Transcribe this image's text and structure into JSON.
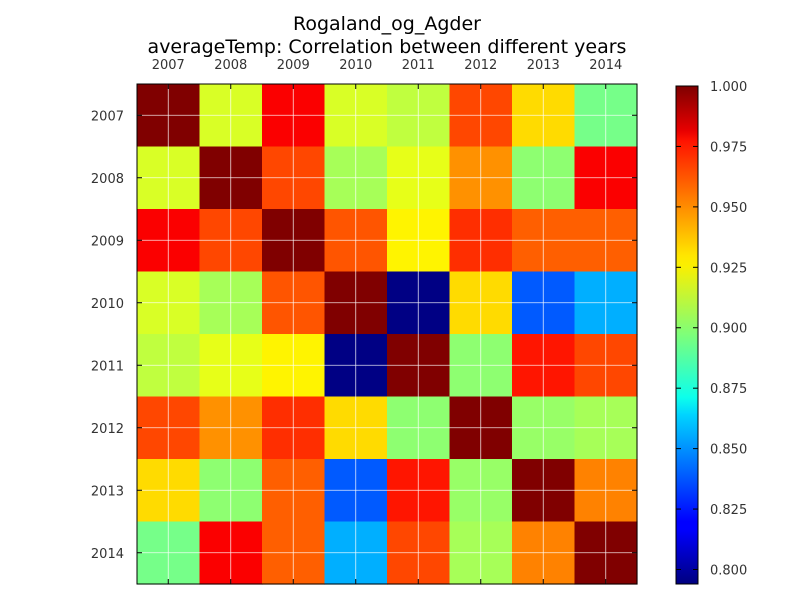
{
  "chart_data": {
    "type": "heatmap",
    "title_line1": "Rogaland_og_Agder",
    "title_line2": "averageTemp: Correlation between different years",
    "xlabels": [
      "2007",
      "2008",
      "2009",
      "2010",
      "2011",
      "2012",
      "2013",
      "2014"
    ],
    "ylabels": [
      "2007",
      "2008",
      "2009",
      "2010",
      "2011",
      "2012",
      "2013",
      "2014"
    ],
    "values": [
      [
        1.0,
        0.915,
        0.975,
        0.915,
        0.91,
        0.96,
        0.93,
        0.895
      ],
      [
        0.915,
        1.0,
        0.96,
        0.905,
        0.918,
        0.945,
        0.9,
        0.975
      ],
      [
        0.975,
        0.96,
        1.0,
        0.957,
        0.925,
        0.965,
        0.955,
        0.955
      ],
      [
        0.915,
        0.905,
        0.957,
        1.0,
        0.795,
        0.93,
        0.838,
        0.855
      ],
      [
        0.91,
        0.918,
        0.925,
        0.795,
        1.0,
        0.9,
        0.97,
        0.96
      ],
      [
        0.96,
        0.945,
        0.965,
        0.93,
        0.9,
        1.0,
        0.902,
        0.905
      ],
      [
        0.93,
        0.9,
        0.955,
        0.838,
        0.97,
        0.902,
        1.0,
        0.948
      ],
      [
        0.895,
        0.975,
        0.955,
        0.855,
        0.96,
        0.905,
        0.948,
        1.0
      ]
    ],
    "colormap": "jet",
    "vmin": 0.794,
    "vmax": 1.0,
    "colorbar_ticks": [
      "1.000",
      "0.975",
      "0.950",
      "0.925",
      "0.900",
      "0.875",
      "0.850",
      "0.825",
      "0.800"
    ],
    "grid": true
  }
}
